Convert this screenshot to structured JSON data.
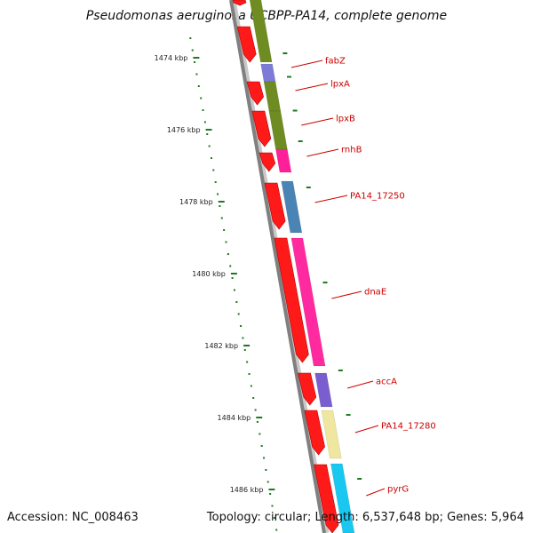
{
  "title": "Pseudomonas aeruginosa UCBPP-PA14, complete genome",
  "accession": "Accession: NC_008463",
  "summary": "Topology: circular; Length: 6,537,648 bp; Genes: 5,964",
  "ticks": [
    "1474 kbp",
    "1476 kbp",
    "1478 kbp",
    "1480 kbp",
    "1482 kbp",
    "1484 kbp",
    "1486 kbp"
  ],
  "colors": {
    "cds": "#ff1a1a",
    "backbone": "#808080",
    "tick": "#1e7a1e",
    "label": "#cc0000"
  },
  "genes": [
    {
      "name": "fabZ",
      "color": "#7c7cd8"
    },
    {
      "name": "lpxA",
      "color": "#6f8c23"
    },
    {
      "name": "lpxB",
      "color": "#6f8c23"
    },
    {
      "name": "rnhB",
      "color": "#ff1f9b"
    },
    {
      "name": "PA14_17250",
      "color": "#4a84b4"
    },
    {
      "name": "dnaE",
      "color": "#ff2aa0"
    },
    {
      "name": "accA",
      "color": "#7a5ecf"
    },
    {
      "name": "PA14_17280",
      "color": "#efe6a0"
    },
    {
      "name": "pyrG",
      "color": "#19c8f0"
    }
  ]
}
